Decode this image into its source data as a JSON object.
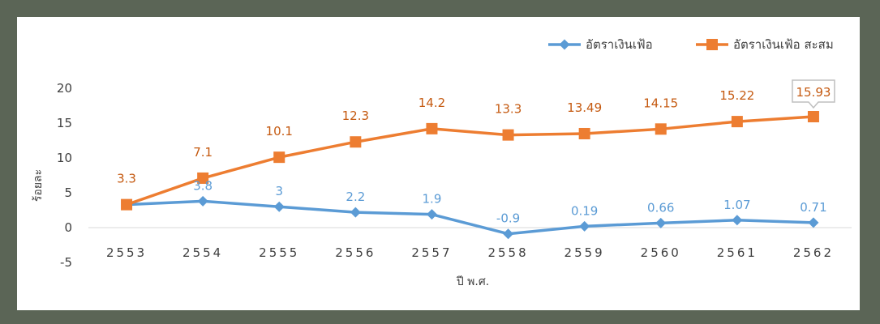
{
  "colors": {
    "series1": "#5b9bd5",
    "series2": "#ed7d31",
    "label1": "#5b9bd5",
    "label2": "#c55a11",
    "frame": "#5b6556"
  },
  "chart_data": {
    "type": "line",
    "title": "",
    "xlabel": "ปี พ.ศ.",
    "ylabel": "ร้อยละ",
    "categories": [
      "2553",
      "2554",
      "2555",
      "2556",
      "2557",
      "2558",
      "2559",
      "2560",
      "2561",
      "2562"
    ],
    "ylim": [
      -5,
      20
    ],
    "yticks": [
      -5,
      0,
      5,
      10,
      15,
      20
    ],
    "grid": false,
    "legend_position": "top-right",
    "series": [
      {
        "name": "อัตราเงินเฟ้อ",
        "values": [
          3.3,
          3.8,
          3,
          2.2,
          1.9,
          -0.9,
          0.19,
          0.66,
          1.07,
          0.71
        ],
        "labels": [
          "",
          "3.8",
          "3",
          "2.2",
          "1.9",
          "-0.9",
          "0.19",
          "0.66",
          "1.07",
          "0.71"
        ],
        "marker": "diamond"
      },
      {
        "name": "อัตราเงินเฟ้อ สะสม",
        "values": [
          3.3,
          7.1,
          10.1,
          12.3,
          14.2,
          13.3,
          13.49,
          14.15,
          15.22,
          15.93
        ],
        "labels": [
          "3.3",
          "7.1",
          "10.1",
          "12.3",
          "14.2",
          "13.3",
          "13.49",
          "14.15",
          "15.22",
          "15.93"
        ],
        "marker": "square"
      }
    ]
  }
}
